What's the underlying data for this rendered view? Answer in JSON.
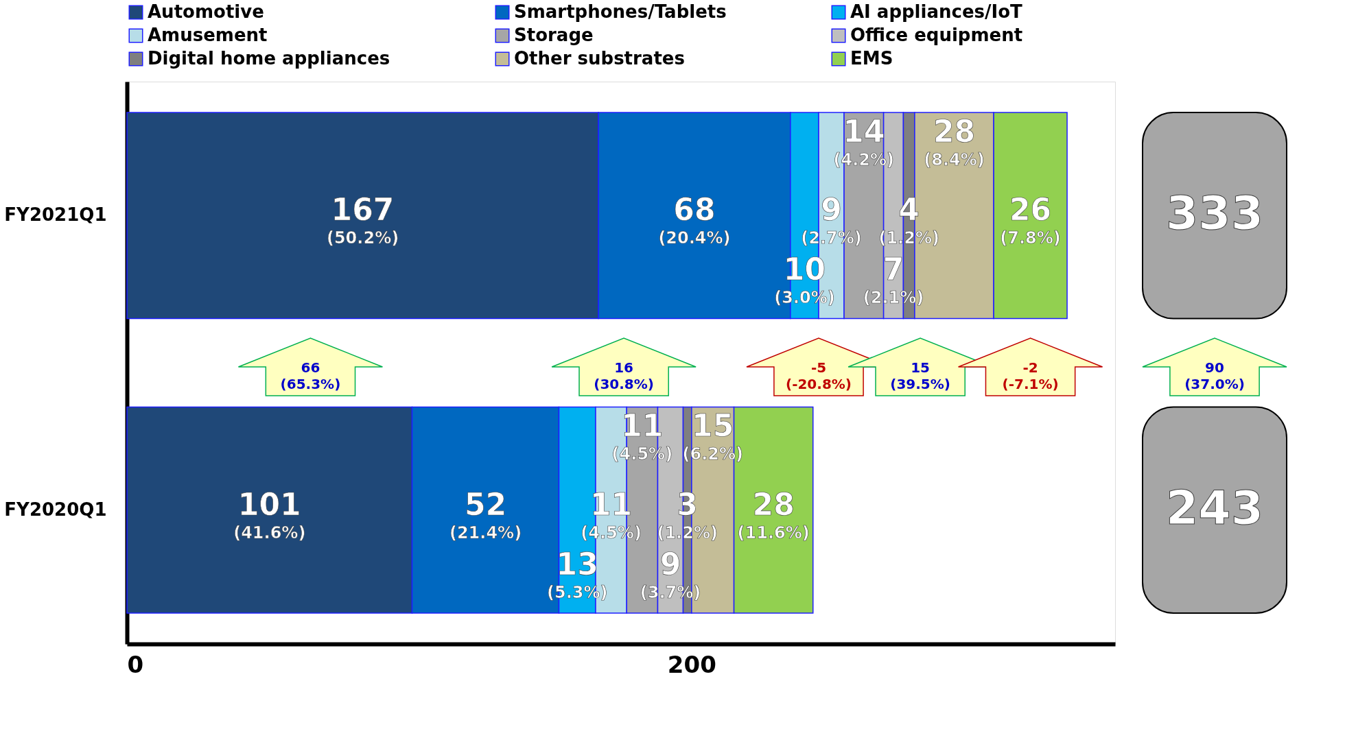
{
  "chart_data": {
    "type": "bar",
    "orientation": "horizontal",
    "stacked": true,
    "categories": [
      "FY2021Q1",
      "FY2020Q1"
    ],
    "series": [
      {
        "name": "Automotive",
        "color": "#1f4878",
        "values": [
          167,
          101
        ],
        "value_labels": [
          "167 (50.2%)",
          "101 (41.6%)"
        ]
      },
      {
        "name": "Smartphones/Tablets",
        "color": "#0068c0",
        "values": [
          68,
          52
        ],
        "value_labels": [
          "68 (20.4%)",
          "52 (21.4%)"
        ]
      },
      {
        "name": "AI appliances/IoT",
        "color": "#00b0f0",
        "values": [
          10,
          13
        ],
        "value_labels": [
          "10 (3.0%)",
          "13 (5.3%)"
        ]
      },
      {
        "name": "Amusement",
        "color": "#b7dde8",
        "values": [
          9,
          11
        ],
        "value_labels": [
          "9 (2.7%)",
          "11 (4.5%)"
        ]
      },
      {
        "name": "Storage",
        "color": "#a6a6a6",
        "values": [
          14,
          11
        ],
        "value_labels": [
          "14 (4.2%)",
          "11 (4.5%)"
        ]
      },
      {
        "name": "Office equipment",
        "color": "#bfbfbf",
        "values": [
          7,
          9
        ],
        "value_labels": [
          "7 (2.1%)",
          "9 (3.7%)"
        ]
      },
      {
        "name": "Digital home appliances",
        "color": "#7f7f7f",
        "values": [
          4,
          3
        ],
        "value_labels": [
          "4 (1.2%)",
          "3 (1.2%)"
        ]
      },
      {
        "name": "Other substrates",
        "color": "#c4bd97",
        "values": [
          28,
          15
        ],
        "value_labels": [
          "28 (8.4%)",
          "15 (6.2%)"
        ]
      },
      {
        "name": "EMS",
        "color": "#92d050",
        "values": [
          26,
          28
        ],
        "value_labels": [
          "26 (7.8%)",
          "28 (11.6%)"
        ]
      }
    ],
    "annotations": [
      "66 (65.3%)",
      "16 (30.8%)",
      "-5 (-20.8%)",
      "15 (39.5%)",
      "-2 (-7.1%)",
      "90 (37.0%)",
      "333",
      "243"
    ],
    "xlim": [
      0,
      350
    ],
    "xticks": [
      0,
      200
    ],
    "grid": false,
    "legend": "top"
  }
}
